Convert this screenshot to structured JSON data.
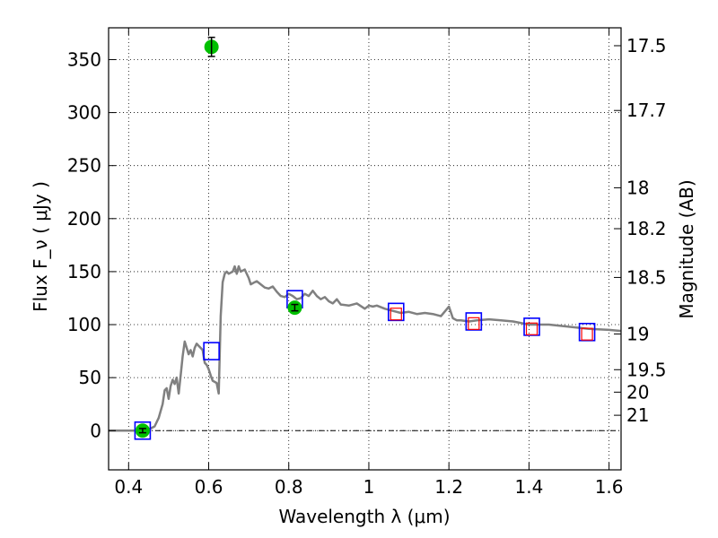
{
  "chart_data": {
    "type": "line",
    "xlabel": "Wavelength  λ (μm)",
    "ylabel": "Flux  F_ν  ( μJy )",
    "ylabel_right": "Magnitude (AB)",
    "xlim": [
      0.35,
      1.63
    ],
    "ylim": [
      -37,
      380
    ],
    "grid": true,
    "x_ticks": [
      0.4,
      0.6,
      0.8,
      1.0,
      1.2,
      1.4,
      1.6
    ],
    "x_tick_labels": [
      "0.4",
      "0.6",
      "0.8",
      "1",
      "1.2",
      "1.4",
      "1.6"
    ],
    "y_ticks": [
      0,
      50,
      100,
      150,
      200,
      250,
      300,
      350
    ],
    "y_tick_labels": [
      "0",
      "50",
      "100",
      "150",
      "200",
      "250",
      "300",
      "350"
    ],
    "right_ticks": [
      {
        "flux": 363.1,
        "label": "17.5"
      },
      {
        "flux": 302.0,
        "label": "17.7"
      },
      {
        "flux": 229.1,
        "label": "18"
      },
      {
        "flux": 190.5,
        "label": "18.2"
      },
      {
        "flux": 144.5,
        "label": "18.5"
      },
      {
        "flux": 91.2,
        "label": "19"
      },
      {
        "flux": 57.5,
        "label": "19.5"
      },
      {
        "flux": 36.3,
        "label": "20"
      },
      {
        "flux": 14.5,
        "label": "21"
      }
    ],
    "zero_line": 0,
    "series": [
      {
        "kind": "model_spectrum",
        "color": "#808080",
        "x": [
          0.35,
          0.44,
          0.455,
          0.465,
          0.475,
          0.485,
          0.49,
          0.495,
          0.5,
          0.505,
          0.51,
          0.515,
          0.52,
          0.525,
          0.53,
          0.535,
          0.54,
          0.545,
          0.55,
          0.555,
          0.56,
          0.565,
          0.57,
          0.575,
          0.58,
          0.585,
          0.59,
          0.595,
          0.6,
          0.605,
          0.61,
          0.615,
          0.62,
          0.625,
          0.63,
          0.635,
          0.64,
          0.645,
          0.65,
          0.66,
          0.665,
          0.67,
          0.675,
          0.68,
          0.69,
          0.7,
          0.705,
          0.715,
          0.72,
          0.73,
          0.74,
          0.75,
          0.76,
          0.77,
          0.78,
          0.79,
          0.8,
          0.81,
          0.82,
          0.83,
          0.84,
          0.85,
          0.86,
          0.87,
          0.88,
          0.89,
          0.9,
          0.91,
          0.92,
          0.93,
          0.95,
          0.97,
          0.99,
          1.0,
          1.01,
          1.02,
          1.04,
          1.06,
          1.08,
          1.1,
          1.12,
          1.14,
          1.16,
          1.18,
          1.2,
          1.21,
          1.22,
          1.23,
          1.25,
          1.27,
          1.3,
          1.33,
          1.36,
          1.4,
          1.45,
          1.5,
          1.55,
          1.6,
          1.63
        ],
        "y": [
          0,
          0,
          2,
          4,
          12,
          25,
          38,
          40,
          30,
          42,
          48,
          44,
          50,
          35,
          52,
          70,
          84,
          78,
          72,
          76,
          70,
          78,
          82,
          80,
          78,
          76,
          64,
          62,
          58,
          52,
          47,
          46,
          45,
          35,
          108,
          140,
          148,
          150,
          148,
          150,
          155,
          148,
          155,
          150,
          152,
          144,
          138,
          140,
          141,
          138,
          135,
          134,
          136,
          131,
          127,
          126,
          129,
          127,
          124,
          125,
          129,
          127,
          132,
          127,
          124,
          126,
          122,
          120,
          124,
          119,
          118,
          120,
          115,
          118,
          117,
          118,
          115,
          113,
          111,
          112,
          110,
          111,
          110,
          108,
          117,
          106,
          104,
          104,
          103,
          104,
          105,
          104,
          103,
          100,
          100,
          98,
          96,
          95,
          94
        ]
      },
      {
        "kind": "observed_points",
        "color": "#00c000",
        "points": [
          {
            "x": 0.435,
            "y": 0,
            "err": 2
          },
          {
            "x": 0.607,
            "y": 362,
            "err": 9
          },
          {
            "x": 0.815,
            "y": 116,
            "err": 3
          }
        ]
      },
      {
        "kind": "model_photometry",
        "color": "#0000ff",
        "marker": "square",
        "points": [
          {
            "x": 0.435,
            "y": 0
          },
          {
            "x": 0.607,
            "y": 75
          },
          {
            "x": 0.815,
            "y": 124
          },
          {
            "x": 1.068,
            "y": 112
          },
          {
            "x": 1.262,
            "y": 103
          },
          {
            "x": 1.407,
            "y": 98
          },
          {
            "x": 1.545,
            "y": 93
          }
        ]
      },
      {
        "kind": "model_photometry_ir",
        "color": "#ff0000",
        "marker": "square",
        "points": [
          {
            "x": 1.068,
            "y": 110
          },
          {
            "x": 1.262,
            "y": 101
          },
          {
            "x": 1.407,
            "y": 96
          },
          {
            "x": 1.545,
            "y": 91
          }
        ]
      }
    ]
  }
}
